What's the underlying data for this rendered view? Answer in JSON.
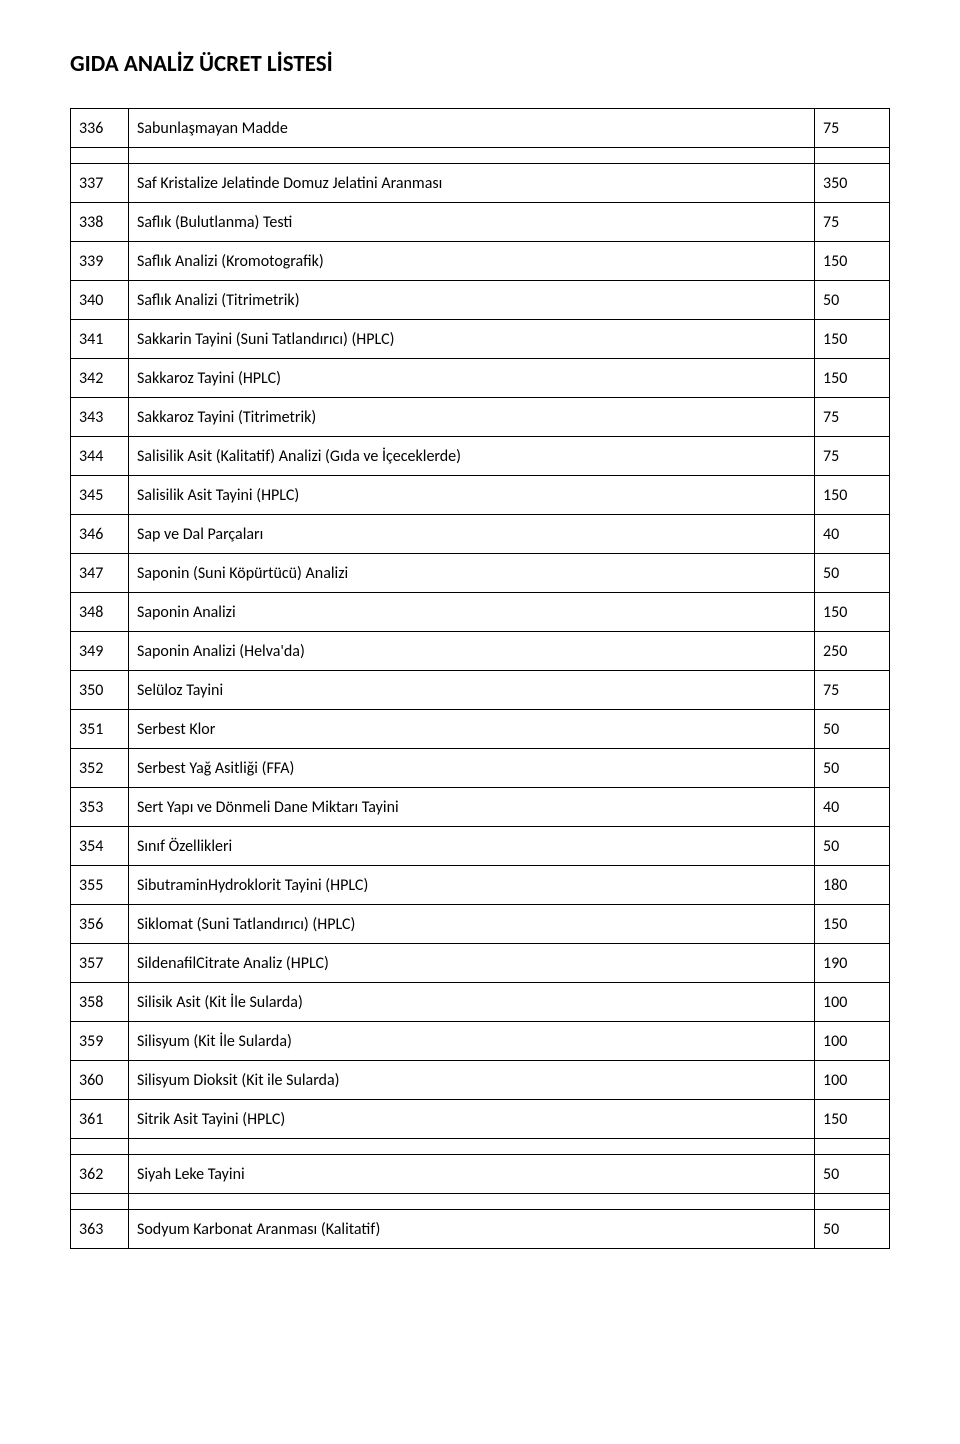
{
  "title": "GIDA ANALİZ ÜCRET LİSTESİ",
  "rows": [
    {
      "id": "336",
      "name": "Sabunlaşmayan Madde",
      "price": "75"
    },
    {
      "id": "337",
      "name": "Saf Kristalize Jelatinde Domuz Jelatini Aranması",
      "price": "350"
    },
    {
      "id": "338",
      "name": "Saflık (Bulutlanma) Testi",
      "price": "75"
    },
    {
      "id": "339",
      "name": "Saflık Analizi (Kromotografik)",
      "price": "150"
    },
    {
      "id": "340",
      "name": "Saflık Analizi (Titrimetrik)",
      "price": "50"
    },
    {
      "id": "341",
      "name": "Sakkarin Tayini (Suni Tatlandırıcı) (HPLC)",
      "price": "150"
    },
    {
      "id": "342",
      "name": "Sakkaroz Tayini (HPLC)",
      "price": "150"
    },
    {
      "id": "343",
      "name": "Sakkaroz Tayini (Titrimetrik)",
      "price": "75"
    },
    {
      "id": "344",
      "name": "Salisilik Asit (Kalitatif) Analizi (Gıda ve İçeceklerde)",
      "price": "75"
    },
    {
      "id": "345",
      "name": "Salisilik Asit Tayini (HPLC)",
      "price": "150"
    },
    {
      "id": "346",
      "name": "Sap ve Dal Parçaları",
      "price": "40"
    },
    {
      "id": "347",
      "name": "Saponin (Suni Köpürtücü) Analizi",
      "price": "50"
    },
    {
      "id": "348",
      "name": "Saponin Analizi",
      "price": "150"
    },
    {
      "id": "349",
      "name": "Saponin Analizi (Helva'da)",
      "price": "250"
    },
    {
      "id": "350",
      "name": "Selüloz Tayini",
      "price": "75"
    },
    {
      "id": "351",
      "name": "Serbest Klor",
      "price": "50"
    },
    {
      "id": "352",
      "name": "Serbest Yağ Asitliği (FFA)",
      "price": "50"
    },
    {
      "id": "353",
      "name": "Sert Yapı ve Dönmeli Dane Miktarı Tayini",
      "price": "40"
    },
    {
      "id": "354",
      "name": "Sınıf Özellikleri",
      "price": "50"
    },
    {
      "id": "355",
      "name": "SibutraminHydroklorit Tayini (HPLC)",
      "price": "180"
    },
    {
      "id": "356",
      "name": "Siklomat (Suni Tatlandırıcı) (HPLC)",
      "price": "150"
    },
    {
      "id": "357",
      "name": "SildenafilCitrate Analiz (HPLC)",
      "price": "190"
    },
    {
      "id": "358",
      "name": "Silisik Asit (Kit İle Sularda)",
      "price": "100"
    },
    {
      "id": "359",
      "name": "Silisyum (Kit İle Sularda)",
      "price": "100"
    },
    {
      "id": "360",
      "name": "Silisyum Dioksit (Kit ile Sularda)",
      "price": "100"
    },
    {
      "id": "361",
      "name": "Sitrik Asit Tayini (HPLC)",
      "price": "150"
    },
    {
      "id": "362",
      "name": "Siyah Leke Tayini",
      "price": "50"
    },
    {
      "id": "363",
      "name": "Sodyum Karbonat Aranması (Kalitatif)",
      "price": "50"
    }
  ],
  "gap_after_ids": [
    "336",
    "361",
    "362"
  ],
  "styles": {
    "background_color": "#ffffff",
    "text_color": "#000000",
    "border_color": "#000000",
    "title_fontsize": 23,
    "cell_fontsize": 16,
    "col_id_width": 58,
    "col_price_width": 75
  }
}
